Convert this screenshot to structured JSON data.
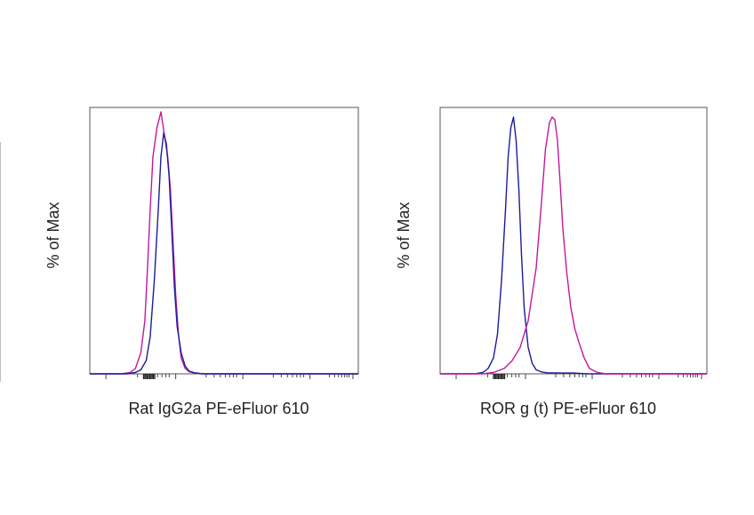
{
  "chart_data": [
    {
      "type": "line",
      "xlabel": "Rat IgG2a PE-eFluor 610",
      "ylabel": "% of Max",
      "xlim": [
        0,
        1000
      ],
      "ylim": [
        0,
        100
      ],
      "grid": false,
      "series": [
        {
          "color": "#c2189c",
          "x": [
            0,
            120,
            150,
            170,
            190,
            205,
            215,
            225,
            235,
            250,
            265,
            275,
            290,
            300,
            310,
            320,
            330,
            340,
            355,
            370,
            390,
            420,
            460,
            1000
          ],
          "values": [
            0,
            0,
            0.5,
            2,
            8,
            20,
            40,
            62,
            82,
            93,
            99,
            92,
            82,
            70,
            50,
            30,
            15,
            6,
            2,
            0.8,
            0.3,
            0,
            0,
            0
          ]
        },
        {
          "color": "#1c1c9c",
          "x": [
            0,
            140,
            170,
            190,
            210,
            225,
            240,
            255,
            265,
            275,
            285,
            295,
            305,
            315,
            325,
            340,
            355,
            370,
            390,
            420,
            460,
            1000
          ],
          "values": [
            0,
            0,
            0.5,
            1.5,
            5,
            14,
            35,
            62,
            82,
            91,
            87,
            75,
            55,
            33,
            18,
            8,
            3,
            1,
            0.4,
            0,
            0,
            0
          ]
        }
      ]
    },
    {
      "type": "line",
      "xlabel": "ROR g (t) PE-eFluor 610",
      "ylabel": "% of Max",
      "xlim": [
        0,
        1000
      ],
      "ylim": [
        0,
        100
      ],
      "grid": false,
      "series": [
        {
          "color": "#1c1c9c",
          "x": [
            0,
            130,
            160,
            180,
            200,
            215,
            230,
            245,
            255,
            265,
            275,
            285,
            295,
            305,
            315,
            330,
            345,
            360,
            380,
            400,
            450,
            500,
            550,
            1000
          ],
          "values": [
            0,
            0,
            0.5,
            2,
            6,
            15,
            35,
            62,
            82,
            93,
            97,
            88,
            70,
            45,
            25,
            10,
            4,
            1.5,
            0.7,
            0.4,
            0.3,
            0.3,
            0,
            0
          ]
        },
        {
          "color": "#c2189c",
          "x": [
            0,
            160,
            200,
            240,
            270,
            300,
            330,
            360,
            380,
            395,
            410,
            420,
            430,
            440,
            450,
            460,
            475,
            490,
            505,
            520,
            540,
            560,
            590,
            620,
            1000
          ],
          "values": [
            0,
            0,
            0.5,
            2,
            5,
            10,
            20,
            40,
            65,
            85,
            95,
            97,
            96,
            88,
            72,
            55,
            38,
            25,
            17,
            12,
            6,
            2,
            0.5,
            0,
            0
          ]
        }
      ]
    }
  ]
}
